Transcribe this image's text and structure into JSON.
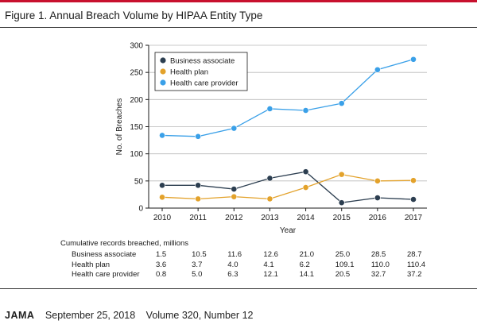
{
  "figure": {
    "title": "Figure 1. Annual Breach Volume by HIPAA Entity Type"
  },
  "chart_data": {
    "type": "line",
    "title": "Annual Breach Volume by HIPAA Entity Type",
    "xlabel": "Year",
    "ylabel": "No. of Breaches",
    "x": [
      2010,
      2011,
      2012,
      2013,
      2014,
      2015,
      2016,
      2017
    ],
    "ylim": [
      0,
      300
    ],
    "yticks": [
      0,
      50,
      100,
      150,
      200,
      250,
      300
    ],
    "grid": true,
    "legend_position": "top-left",
    "series": [
      {
        "name": "Business associate",
        "color": "#2c3e50",
        "values": [
          42,
          42,
          35,
          55,
          67,
          10,
          19,
          16
        ]
      },
      {
        "name": "Health plan",
        "color": "#e3a22b",
        "values": [
          20,
          17,
          21,
          17,
          38,
          62,
          50,
          51
        ]
      },
      {
        "name": "Health care provider",
        "color": "#3aa0e8",
        "values": [
          134,
          132,
          147,
          183,
          180,
          193,
          255,
          274
        ]
      }
    ]
  },
  "records_table": {
    "title": "Cumulative records breached, millions",
    "rows": [
      {
        "label": "Business associate",
        "values": [
          "1.5",
          "10.5",
          "11.6",
          "12.6",
          "21.0",
          "25.0",
          "28.5",
          "28.7"
        ]
      },
      {
        "label": "Health plan",
        "values": [
          "3.6",
          "3.7",
          "4.0",
          "4.1",
          "6.2",
          "109.1",
          "110.0",
          "110.4"
        ]
      },
      {
        "label": "Health care provider",
        "values": [
          "0.8",
          "5.0",
          "6.3",
          "12.1",
          "14.1",
          "20.5",
          "32.7",
          "37.2"
        ]
      }
    ]
  },
  "footer": {
    "journal": "JAMA",
    "date": "September 25, 2018",
    "volume": "Volume 320, Number 12"
  }
}
